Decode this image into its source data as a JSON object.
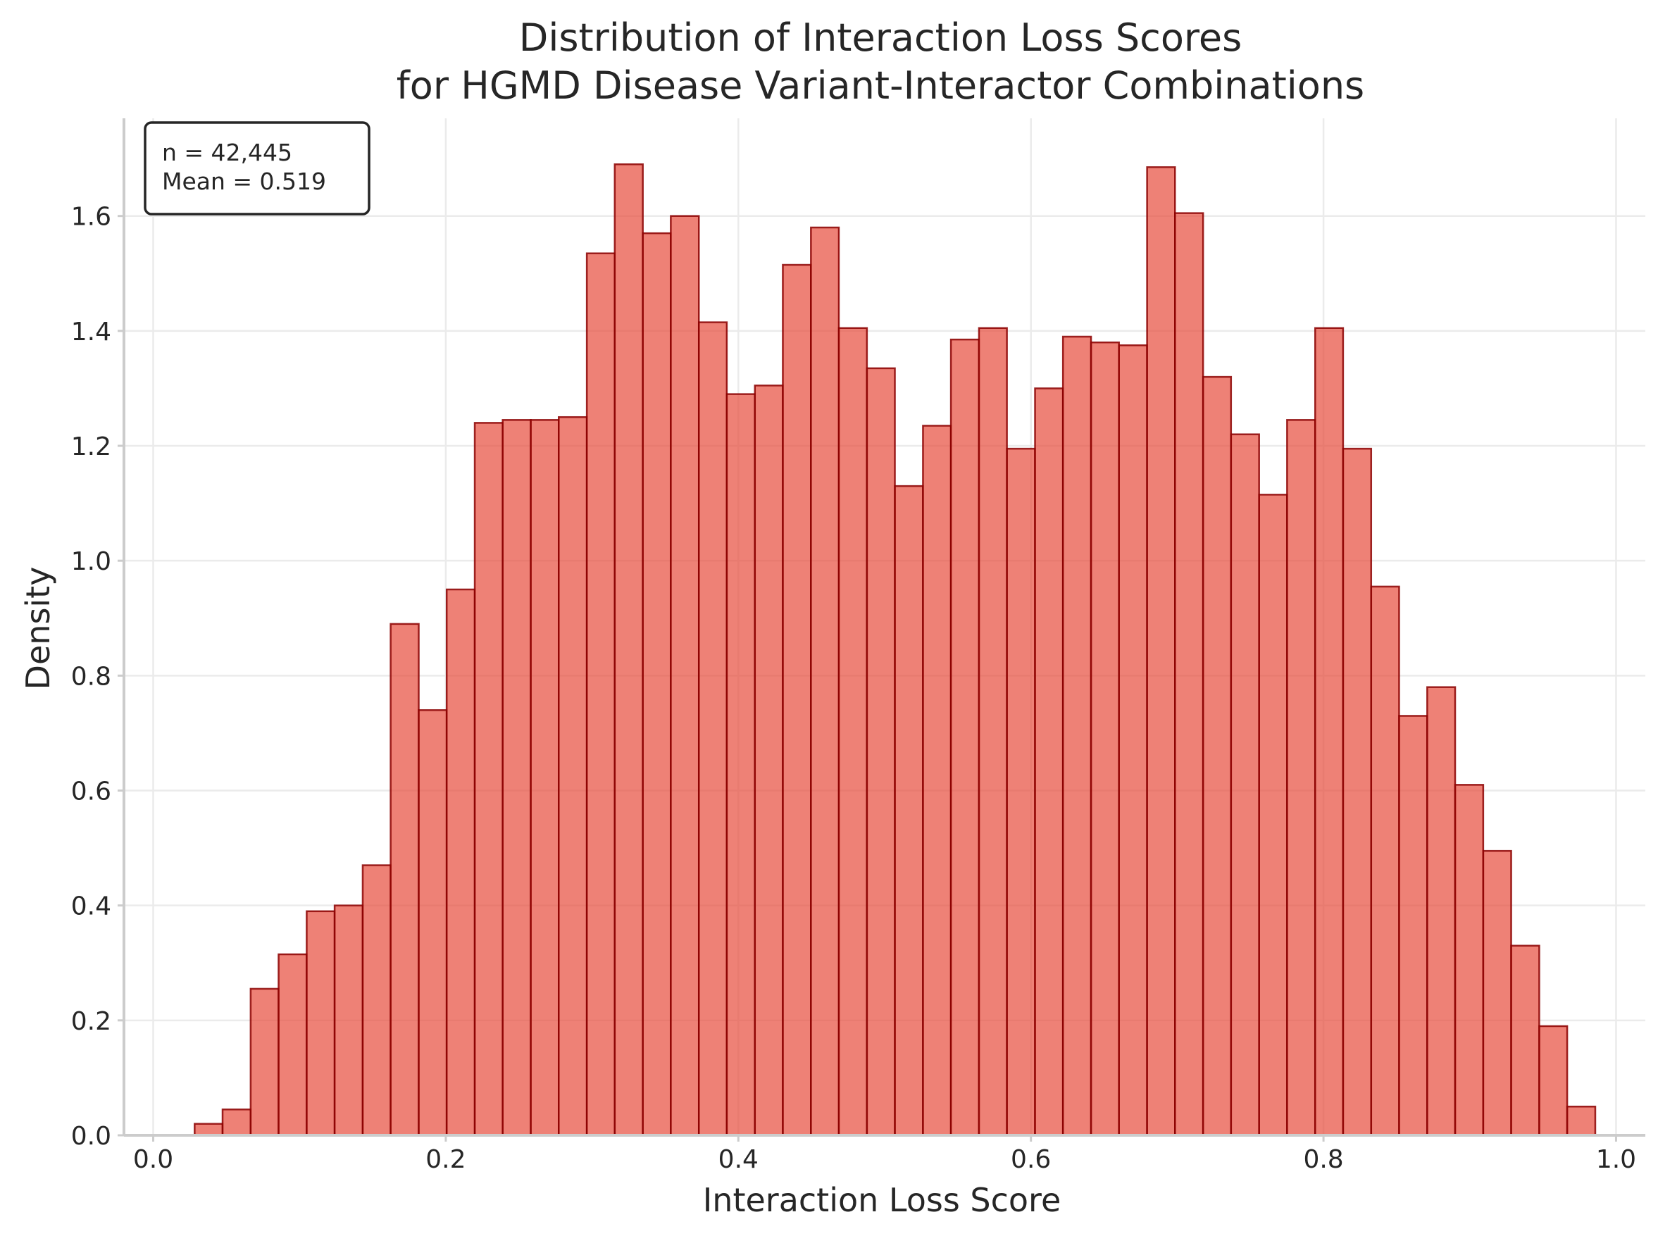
{
  "chart_data": {
    "type": "bar",
    "title_lines": [
      "Distribution of Interaction Loss Scores",
      "for HGMD Disease Variant-Interactor Combinations"
    ],
    "xlabel": "Interaction Loss Score",
    "ylabel": "Density",
    "xlim": [
      -0.02,
      1.02
    ],
    "ylim": [
      0,
      1.77
    ],
    "xticks": [
      0.0,
      0.2,
      0.4,
      0.6,
      0.8,
      1.0
    ],
    "xtick_labels": [
      "0.0",
      "0.2",
      "0.4",
      "0.6",
      "0.8",
      "1.0"
    ],
    "yticks": [
      0.0,
      0.2,
      0.4,
      0.6,
      0.8,
      1.0,
      1.2,
      1.4,
      1.6
    ],
    "ytick_labels": [
      "0.0",
      "0.2",
      "0.4",
      "0.6",
      "0.8",
      "1.0",
      "1.2",
      "1.4",
      "1.6"
    ],
    "grid": true,
    "bin_edges": [
      0.0283,
      0.0474,
      0.0666,
      0.0857,
      0.1049,
      0.124,
      0.1432,
      0.1623,
      0.1815,
      0.2006,
      0.2198,
      0.2389,
      0.2581,
      0.2772,
      0.2964,
      0.3155,
      0.3347,
      0.3538,
      0.373,
      0.3921,
      0.4113,
      0.4304,
      0.4496,
      0.4687,
      0.4879,
      0.507,
      0.5262,
      0.5453,
      0.5645,
      0.5836,
      0.6028,
      0.6219,
      0.6411,
      0.6602,
      0.6794,
      0.6985,
      0.7177,
      0.7368,
      0.756,
      0.7751,
      0.7943,
      0.8134,
      0.8326,
      0.8517,
      0.8709,
      0.89,
      0.9092,
      0.9283,
      0.9475,
      0.9666,
      0.9858
    ],
    "values": [
      0.02,
      0.045,
      0.255,
      0.315,
      0.39,
      0.4,
      0.47,
      0.89,
      0.74,
      0.95,
      1.24,
      1.245,
      1.245,
      1.25,
      1.535,
      1.69,
      1.57,
      1.6,
      1.415,
      1.29,
      1.305,
      1.515,
      1.58,
      1.405,
      1.335,
      1.13,
      1.235,
      1.385,
      1.405,
      1.195,
      1.3,
      1.39,
      1.38,
      1.375,
      1.685,
      1.605,
      1.32,
      1.22,
      1.115,
      1.245,
      1.405,
      1.195,
      0.955,
      0.73,
      0.78,
      0.61,
      0.495,
      0.33,
      0.19,
      0.05
    ],
    "annotation_lines": [
      "n = 42,445",
      "Mean = 0.519"
    ],
    "annotation_placement": "top-left",
    "colors": {
      "bar_fill": "#e74c3c",
      "bar_edge": "#8b0000"
    }
  }
}
